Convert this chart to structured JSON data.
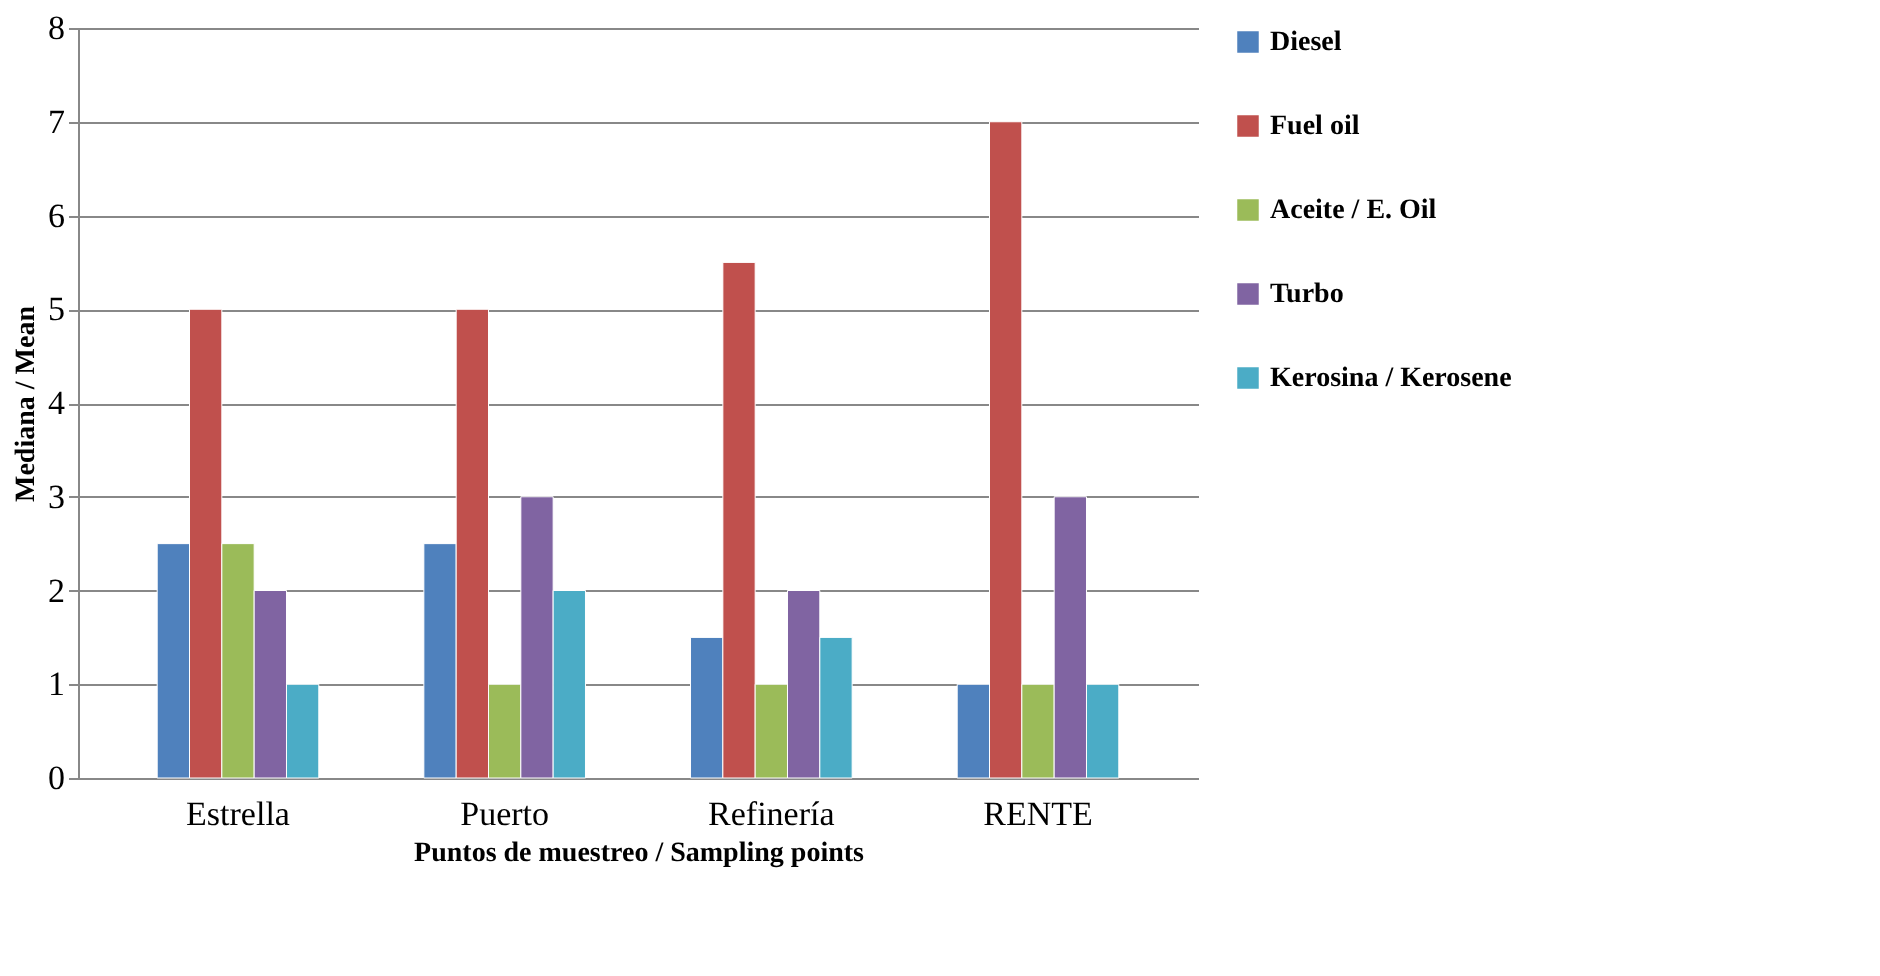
{
  "chart_data": {
    "type": "bar",
    "xlabel": "Puntos de muestreo / Sampling points",
    "ylabel": "Mediana / Mean",
    "categories": [
      "Estrella",
      "Puerto",
      "Refinería",
      "RENTE"
    ],
    "series": [
      {
        "name": "Diesel",
        "color": "#4f81bd",
        "values": [
          2.5,
          2.5,
          1.5,
          1
        ]
      },
      {
        "name": "Fuel oil",
        "color": "#c0504d",
        "values": [
          5,
          5,
          5.5,
          7
        ]
      },
      {
        "name": "Aceite / E. Oil",
        "color": "#9bbb59",
        "values": [
          2.5,
          1,
          1,
          1
        ]
      },
      {
        "name": "Turbo",
        "color": "#8064a2",
        "values": [
          2,
          3,
          2,
          3
        ]
      },
      {
        "name": "Kerosina / Kerosene",
        "color": "#4bacc6",
        "values": [
          1,
          2,
          1.5,
          1
        ]
      }
    ],
    "ylim": [
      0,
      8
    ],
    "yticks": [
      0,
      1,
      2,
      3,
      4,
      5,
      6,
      7,
      8
    ],
    "grid": "y",
    "legend": "right"
  }
}
